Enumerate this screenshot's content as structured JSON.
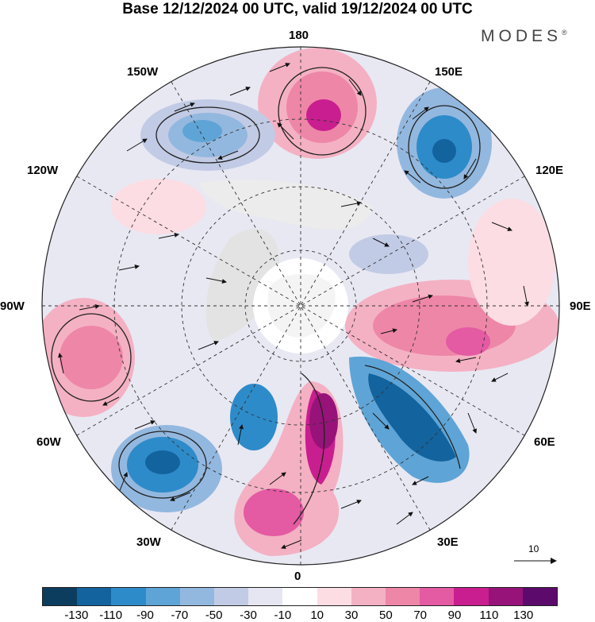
{
  "title": "Base 12/12/2024 00 UTC, valid 19/12/2024 00 UTC",
  "brand": {
    "name": "MODES",
    "mark": "®"
  },
  "longitude_labels": {
    "top": "180",
    "bottom": "0",
    "left": "90W",
    "right": "90E",
    "upper_left": "150W",
    "upper_left2": "120W",
    "upper_right": "150E",
    "upper_right2": "120E",
    "lower_left": "30W",
    "lower_left2": "60W",
    "lower_right": "30E",
    "lower_right2": "60E"
  },
  "reference_vector": {
    "label": "10"
  },
  "colorbar": {
    "colors": [
      "#0c3d5e",
      "#12639e",
      "#2e8bc9",
      "#5fa4d6",
      "#93b8df",
      "#c2cbe5",
      "#e6e6f2",
      "#ffffff",
      "#fbdde3",
      "#f4b1c3",
      "#ee86a8",
      "#e45aa3",
      "#c91e8f",
      "#971379",
      "#5c0a6b"
    ],
    "tick_labels": [
      "-130",
      "-110",
      "-90",
      "-70",
      "-50",
      "-30",
      "-10",
      "10",
      "30",
      "50",
      "70",
      "90",
      "110",
      "130"
    ]
  }
}
